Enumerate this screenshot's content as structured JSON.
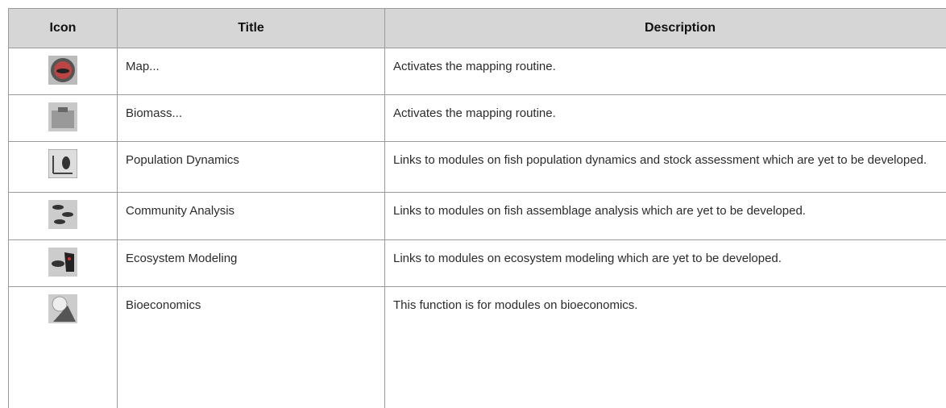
{
  "table": {
    "header": [
      "Icon",
      "Title",
      "Description"
    ],
    "rows": [
      [
        "Map...",
        "Activates the mapping routine."
      ],
      [
        "Biomass...",
        "Activates the mapping routine."
      ],
      [
        "Population Dynamics",
        "Links to modules on fish population dynamics and stock assessment which are yet to be developed."
      ],
      [
        "Community Analysis",
        "Links to modules on fish assemblage analysis which are yet to be developed."
      ],
      [
        "Ecosystem Modeling",
        "Links to modules on ecosystem modeling which are yet to be developed."
      ],
      [
        "Bioeconomics",
        "This function is for modules on bioeconomics."
      ]
    ]
  }
}
